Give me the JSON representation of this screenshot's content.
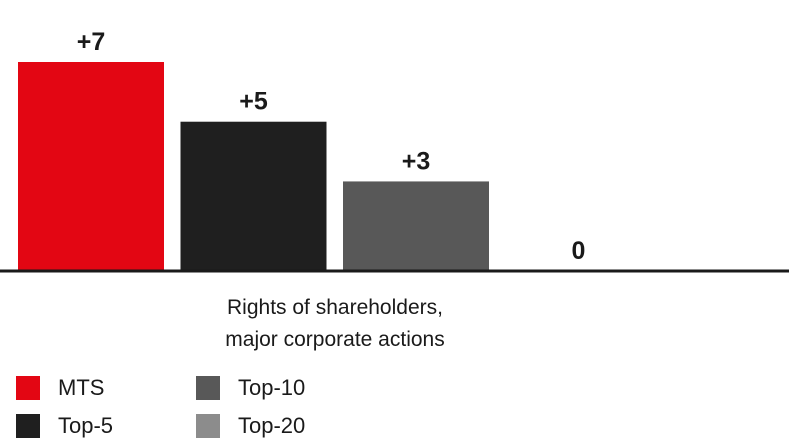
{
  "chart_data": {
    "type": "bar",
    "categories": [
      "Rights of shareholders, major corporate actions"
    ],
    "category_lines": [
      "Rights of shareholders,",
      "major corporate actions"
    ],
    "series": [
      {
        "name": "MTS",
        "values": [
          7
        ],
        "label": "+7",
        "color": "#e30613"
      },
      {
        "name": "Top-5",
        "values": [
          5
        ],
        "label": "+5",
        "color": "#1f1f1f"
      },
      {
        "name": "Top-10",
        "values": [
          3
        ],
        "label": "+3",
        "color": "#585858"
      },
      {
        "name": "Top-20",
        "values": [
          0
        ],
        "label": "0",
        "color": "#8c8c8c"
      }
    ],
    "ylim": [
      0,
      7
    ],
    "grid": false,
    "legend_position": "bottom-left"
  }
}
